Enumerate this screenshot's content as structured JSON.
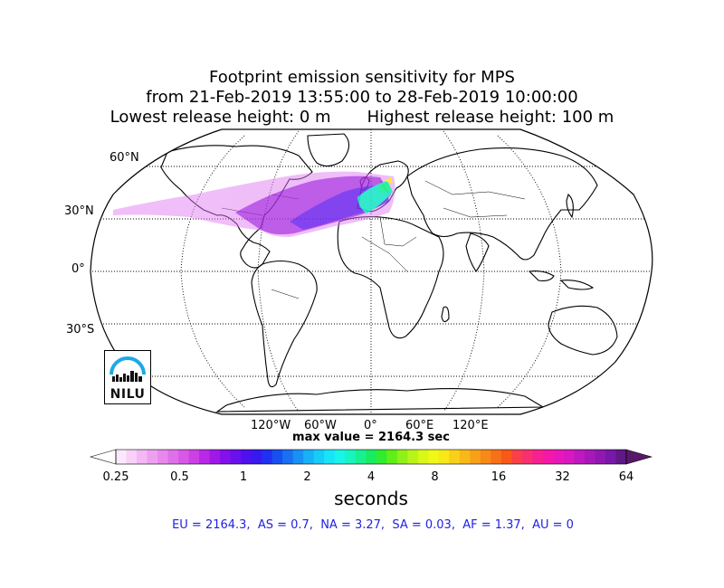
{
  "title": {
    "line1": "Footprint emission sensitivity for MPS",
    "line2": "from 21-Feb-2019 13:55:00 to 28-Feb-2019 10:00:00",
    "line3": "Lowest release height: 0 m       Highest release height: 100 m"
  },
  "map": {
    "projection": "Robinson",
    "lat_labels": [
      "60°N",
      "30°N",
      "0°",
      "30°S"
    ],
    "lon_labels": [
      "120°W",
      "60°W",
      "0°",
      "60°E",
      "120°E"
    ],
    "max_value_text": "max value = 2164.3 sec",
    "logo_text": "NILU",
    "colors": {
      "plume_outer": "#e07cf0",
      "plume_mid": "#a020e0",
      "plume_core": "#6a2cf0",
      "plume_peak": "#1ee6c8"
    }
  },
  "colorbar": {
    "tick_labels": [
      "0.25",
      "0.5",
      "1",
      "2",
      "4",
      "8",
      "16",
      "32",
      "64"
    ],
    "label": "seconds",
    "colors": [
      "#fce8fc",
      "#f8d0f8",
      "#f4b8f4",
      "#eea0f0",
      "#e888ec",
      "#e070ea",
      "#d858e8",
      "#cc40e6",
      "#b828e6",
      "#a018e8",
      "#8410ea",
      "#6a10ec",
      "#5010ee",
      "#3818f0",
      "#2030f0",
      "#1850f0",
      "#1870f2",
      "#1890f4",
      "#18b0f6",
      "#18ccf8",
      "#18e4f8",
      "#18f4e8",
      "#18f4c0",
      "#18f090",
      "#18ec60",
      "#30ec30",
      "#60ee18",
      "#90f018",
      "#b8f418",
      "#d8f818",
      "#f0f818",
      "#f8e818",
      "#f8d018",
      "#f8b818",
      "#f8a018",
      "#f88818",
      "#f87018",
      "#f85818",
      "#f84048",
      "#f83070",
      "#f82090",
      "#f418a8",
      "#e818b8",
      "#d818c0",
      "#c018c0",
      "#a818b8",
      "#9018b0",
      "#7818a8",
      "#601888"
    ],
    "under_color": "#ffffff",
    "over_color": "#58186a"
  },
  "region_totals": "EU = 2164.3,  AS = 0.7,  NA = 3.27,  SA = 0.03,  AF = 1.37,  AU = 0"
}
